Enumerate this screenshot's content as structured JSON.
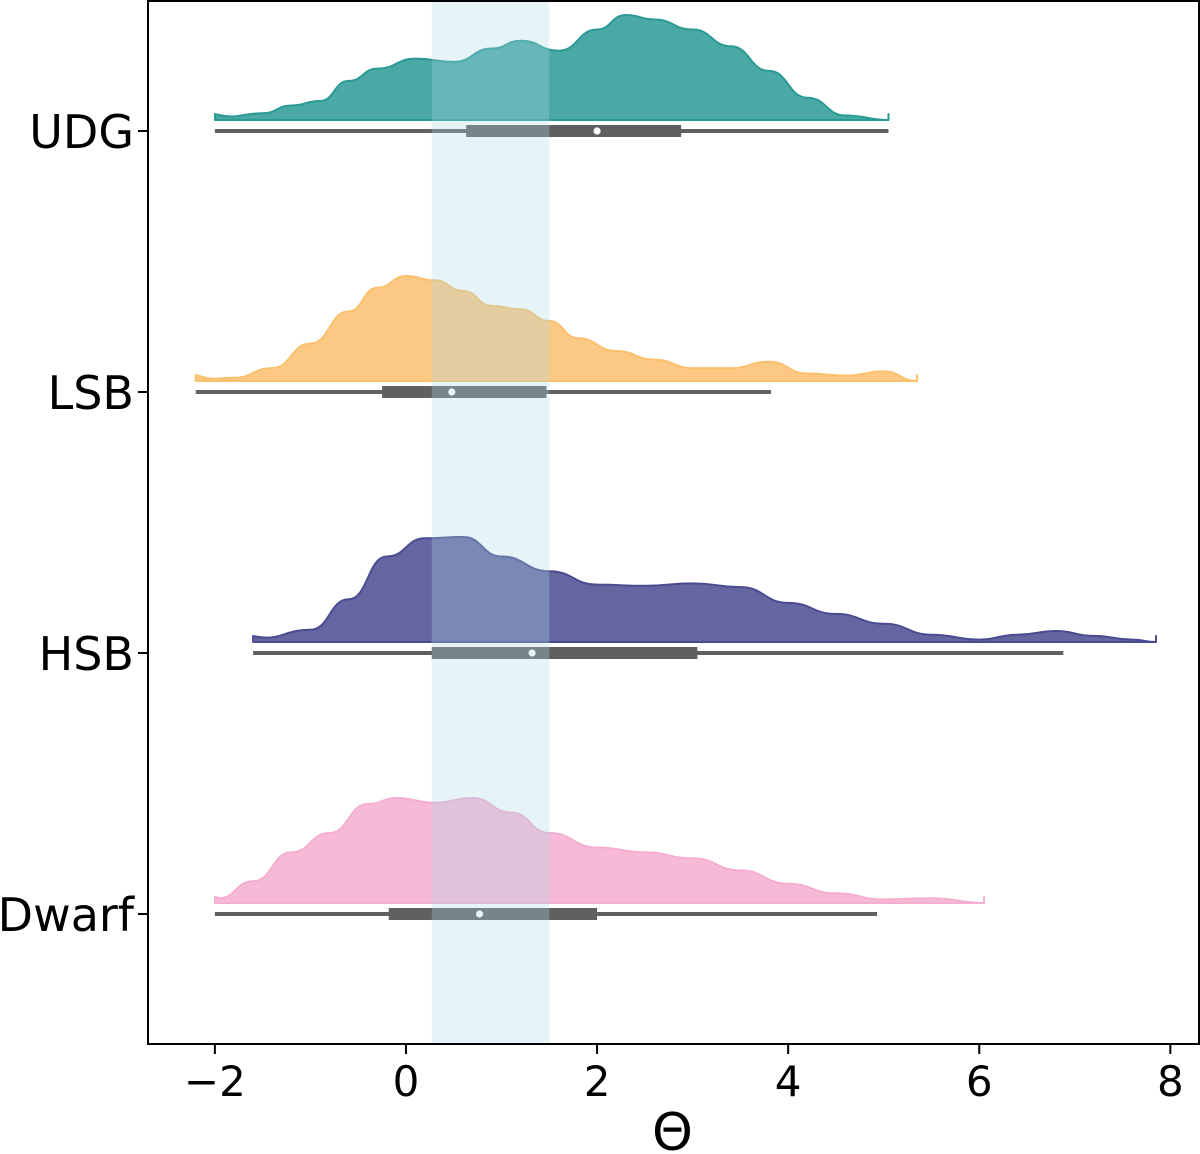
{
  "chart_data": {
    "type": "raincloud",
    "xlabel": "Θ",
    "xlim": [
      -2.7,
      8.3
    ],
    "xticks": [
      -2,
      0,
      2,
      4,
      6,
      8
    ],
    "xtick_labels": [
      "−2",
      "0",
      "2",
      "4",
      "6",
      "8"
    ],
    "highlight_band": {
      "x0": 0.27,
      "x1": 1.5,
      "color": "#add8e6"
    },
    "box_color": "#606060",
    "series": [
      {
        "name": "UDG",
        "color": "#2a9a95",
        "density": {
          "x": [
            -2.0,
            -1.5,
            -1.2,
            -0.9,
            -0.6,
            -0.3,
            0.1,
            0.5,
            0.9,
            1.2,
            1.6,
            2.0,
            2.3,
            2.6,
            3.0,
            3.4,
            3.8,
            4.2,
            4.6,
            5.05
          ],
          "y": [
            0.0,
            0.06,
            0.13,
            0.17,
            0.35,
            0.46,
            0.55,
            0.52,
            0.64,
            0.71,
            0.62,
            0.81,
            0.94,
            0.9,
            0.81,
            0.66,
            0.44,
            0.2,
            0.04,
            0.0
          ]
        },
        "whisker": [
          -2.0,
          5.05
        ],
        "q1": 0.63,
        "median": 2.0,
        "q3": 2.88
      },
      {
        "name": "LSB",
        "color": "#fbc06e",
        "density": {
          "x": [
            -2.2,
            -1.8,
            -1.4,
            -1.0,
            -0.6,
            -0.3,
            0.0,
            0.3,
            0.6,
            0.9,
            1.2,
            1.5,
            1.8,
            2.2,
            2.6,
            3.0,
            3.4,
            3.8,
            4.2,
            4.6,
            5.0,
            5.35
          ],
          "y": [
            0.0,
            0.03,
            0.12,
            0.35,
            0.65,
            0.87,
            0.98,
            0.94,
            0.84,
            0.7,
            0.67,
            0.56,
            0.4,
            0.28,
            0.2,
            0.12,
            0.12,
            0.18,
            0.07,
            0.05,
            0.09,
            0.0
          ]
        },
        "whisker": [
          -2.2,
          3.82
        ],
        "q1": -0.25,
        "median": 0.48,
        "q3": 1.47
      },
      {
        "name": "HSB",
        "color": "#4a4b90",
        "density": {
          "x": [
            -1.6,
            -1.0,
            -0.6,
            -0.2,
            0.2,
            0.6,
            1.0,
            1.5,
            2.0,
            2.5,
            3.0,
            3.5,
            4.0,
            4.5,
            5.0,
            5.5,
            6.0,
            6.4,
            6.8,
            7.2,
            7.6,
            7.85
          ],
          "y": [
            0.0,
            0.1,
            0.35,
            0.7,
            0.85,
            0.86,
            0.7,
            0.58,
            0.47,
            0.46,
            0.48,
            0.45,
            0.32,
            0.23,
            0.15,
            0.06,
            0.02,
            0.06,
            0.09,
            0.05,
            0.02,
            0.0
          ]
        },
        "whisker": [
          -1.6,
          6.88
        ],
        "q1": 0.27,
        "median": 1.32,
        "q3": 3.05
      },
      {
        "name": "Dwarf",
        "color": "#f4aed0",
        "density": {
          "x": [
            -2.0,
            -1.6,
            -1.2,
            -0.8,
            -0.4,
            -0.1,
            0.3,
            0.7,
            1.1,
            1.5,
            2.0,
            2.5,
            3.0,
            3.5,
            4.0,
            4.5,
            5.0,
            5.5,
            6.05
          ],
          "y": [
            0.0,
            0.18,
            0.42,
            0.58,
            0.82,
            0.87,
            0.83,
            0.87,
            0.75,
            0.58,
            0.46,
            0.42,
            0.37,
            0.27,
            0.16,
            0.08,
            0.03,
            0.04,
            0.0
          ]
        },
        "whisker": [
          -2.0,
          4.93
        ],
        "q1": -0.18,
        "median": 0.77,
        "q3": 2.0
      }
    ]
  }
}
